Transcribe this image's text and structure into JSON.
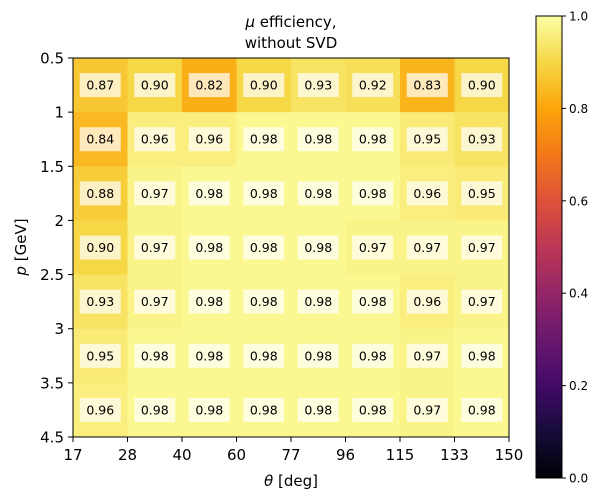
{
  "chart_data": {
    "type": "heatmap",
    "title_line1_prefix": "μ",
    "title_line1_suffix": " efficiency,",
    "title_line2": "without SVD",
    "xlabel_symbol": "θ",
    "xlabel_unit": " [deg]",
    "ylabel_symbol": "p",
    "ylabel_unit": " [GeV]",
    "x_edges": [
      17,
      28,
      40,
      60,
      77,
      96,
      115,
      133,
      150
    ],
    "x_tick_labels": [
      "17",
      "28",
      "40",
      "60",
      "77",
      "96",
      "115",
      "133",
      "150"
    ],
    "y_edges": [
      "0.5",
      "1",
      "1.5",
      "2",
      "2.5",
      "3",
      "3.5",
      "4.5"
    ],
    "y_tick_labels": [
      "0.5",
      "1",
      "1.5",
      "2",
      "2.5",
      "3",
      "3.5",
      "4.5"
    ],
    "values": [
      [
        0.87,
        0.9,
        0.82,
        0.9,
        0.93,
        0.92,
        0.83,
        0.9
      ],
      [
        0.84,
        0.96,
        0.96,
        0.98,
        0.98,
        0.98,
        0.95,
        0.93
      ],
      [
        0.88,
        0.97,
        0.98,
        0.98,
        0.98,
        0.98,
        0.96,
        0.95
      ],
      [
        0.9,
        0.97,
        0.98,
        0.98,
        0.98,
        0.97,
        0.97,
        0.97
      ],
      [
        0.93,
        0.97,
        0.98,
        0.98,
        0.98,
        0.98,
        0.96,
        0.97
      ],
      [
        0.95,
        0.98,
        0.98,
        0.98,
        0.98,
        0.98,
        0.97,
        0.98
      ],
      [
        0.96,
        0.98,
        0.98,
        0.98,
        0.98,
        0.98,
        0.97,
        0.98
      ]
    ],
    "value_labels": [
      [
        "0.87",
        "0.90",
        "0.82",
        "0.90",
        "0.93",
        "0.92",
        "0.83",
        "0.90"
      ],
      [
        "0.84",
        "0.96",
        "0.96",
        "0.98",
        "0.98",
        "0.98",
        "0.95",
        "0.93"
      ],
      [
        "0.88",
        "0.97",
        "0.98",
        "0.98",
        "0.98",
        "0.98",
        "0.96",
        "0.95"
      ],
      [
        "0.90",
        "0.97",
        "0.98",
        "0.98",
        "0.98",
        "0.97",
        "0.97",
        "0.97"
      ],
      [
        "0.93",
        "0.97",
        "0.98",
        "0.98",
        "0.98",
        "0.98",
        "0.96",
        "0.97"
      ],
      [
        "0.95",
        "0.98",
        "0.98",
        "0.98",
        "0.98",
        "0.98",
        "0.97",
        "0.98"
      ],
      [
        "0.96",
        "0.98",
        "0.98",
        "0.98",
        "0.98",
        "0.98",
        "0.97",
        "0.98"
      ]
    ],
    "colorbar": {
      "colormap": "inferno",
      "range": [
        0,
        1
      ],
      "ticks": [
        0.0,
        0.2,
        0.4,
        0.6,
        0.8,
        1.0
      ],
      "tick_labels": [
        "0.0",
        "0.2",
        "0.4",
        "0.6",
        "0.8",
        "1.0"
      ]
    },
    "y_axis_inverted": true,
    "grid": false,
    "cell_label_box_color": "#ffffff"
  }
}
